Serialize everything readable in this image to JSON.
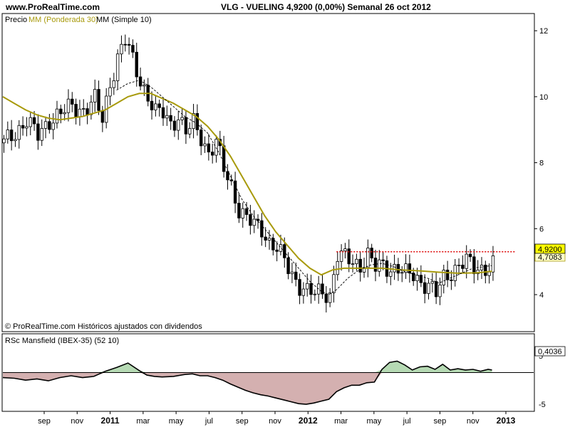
{
  "header": {
    "site": "www.ProRealTime.com",
    "title": "VLG - VUELING    4,9200 (0,00%)    Semanal  26 oct 2012"
  },
  "legend": {
    "price": "Precio",
    "ma30": "MM (Ponderada 30)",
    "ma10": "MM (Simple 10)"
  },
  "footer_note": "© ProRealTime.com  Históricos ajustados con dividendos",
  "indicator": {
    "label": "RSc Mansfield (IBEX-35) (52 10)",
    "value_label": "0,4036",
    "ticks": [
      "5",
      "-5"
    ]
  },
  "price_labels": {
    "last": "4,9200",
    "ma": "4,7083"
  },
  "chart_data": [
    {
      "type": "candlestick",
      "y_ticks": [
        12,
        10,
        8,
        6,
        4
      ],
      "ylim": [
        2.9,
        12.5
      ],
      "x_ticks": [
        "sep",
        "nov",
        "2011",
        "mar",
        "may",
        "jul",
        "sep",
        "nov",
        "2012",
        "mar",
        "may",
        "jul",
        "sep",
        "nov",
        "2013"
      ],
      "bold_ticks": [
        "2011",
        "2012",
        "2013"
      ],
      "colors": {
        "ma30": "#a89a0c",
        "ma10": "#000000",
        "resistance": "#dd0000",
        "price_box": "#ffff00",
        "ma_box": "#ffffcc"
      },
      "close_path": [
        [
          0,
          8.6
        ],
        [
          3,
          8.9
        ],
        [
          6,
          9.3
        ],
        [
          9,
          8.8
        ],
        [
          12,
          9.3
        ],
        [
          15,
          9.5
        ],
        [
          18,
          9.7
        ],
        [
          21,
          9.6
        ],
        [
          24,
          9.9
        ],
        [
          26,
          9.3
        ],
        [
          28,
          10.4
        ],
        [
          30,
          11.2
        ],
        [
          32,
          11.7
        ],
        [
          34,
          11.1
        ],
        [
          36,
          10.5
        ],
        [
          38,
          10.0
        ],
        [
          40,
          9.5
        ],
        [
          42,
          9.5
        ],
        [
          44,
          9.2
        ],
        [
          46,
          9.4
        ],
        [
          48,
          8.9
        ],
        [
          50,
          9.2
        ],
        [
          52,
          8.8
        ],
        [
          54,
          8.3
        ],
        [
          56,
          8.6
        ],
        [
          58,
          7.8
        ],
        [
          60,
          7.3
        ],
        [
          62,
          6.6
        ],
        [
          64,
          6.3
        ],
        [
          66,
          6.1
        ],
        [
          68,
          6.0
        ],
        [
          70,
          5.6
        ],
        [
          72,
          5.4
        ],
        [
          74,
          5.0
        ],
        [
          76,
          4.6
        ],
        [
          78,
          4.3
        ],
        [
          80,
          4.1
        ],
        [
          82,
          4.0
        ],
        [
          84,
          4.1
        ],
        [
          86,
          4.0
        ],
        [
          88,
          5.2
        ],
        [
          90,
          5.1
        ],
        [
          92,
          5.0
        ],
        [
          94,
          4.9
        ],
        [
          96,
          5.2
        ],
        [
          98,
          4.8
        ],
        [
          100,
          4.9
        ],
        [
          102,
          4.8
        ],
        [
          104,
          4.8
        ],
        [
          106,
          4.6
        ],
        [
          108,
          4.6
        ],
        [
          110,
          4.4
        ],
        [
          112,
          4.3
        ],
        [
          114,
          4.0
        ],
        [
          116,
          4.5
        ],
        [
          118,
          4.7
        ],
        [
          120,
          4.9
        ],
        [
          122,
          5.0
        ],
        [
          124,
          4.8
        ],
        [
          126,
          4.8
        ],
        [
          128,
          4.85
        ],
        [
          129,
          4.92
        ]
      ],
      "ma30": [
        [
          0,
          10.0
        ],
        [
          3,
          9.8
        ],
        [
          6,
          9.6
        ],
        [
          9,
          9.45
        ],
        [
          12,
          9.35
        ],
        [
          15,
          9.3
        ],
        [
          18,
          9.35
        ],
        [
          21,
          9.4
        ],
        [
          24,
          9.5
        ],
        [
          27,
          9.6
        ],
        [
          30,
          9.8
        ],
        [
          33,
          10.0
        ],
        [
          36,
          10.1
        ],
        [
          39,
          10.1
        ],
        [
          42,
          9.95
        ],
        [
          45,
          9.8
        ],
        [
          48,
          9.6
        ],
        [
          51,
          9.4
        ],
        [
          54,
          9.1
        ],
        [
          57,
          8.7
        ],
        [
          60,
          8.2
        ],
        [
          63,
          7.6
        ],
        [
          66,
          7.0
        ],
        [
          69,
          6.4
        ],
        [
          72,
          5.9
        ],
        [
          75,
          5.5
        ],
        [
          78,
          5.1
        ],
        [
          81,
          4.8
        ],
        [
          84,
          4.6
        ],
        [
          87,
          4.75
        ],
        [
          90,
          4.8
        ],
        [
          95,
          4.8
        ],
        [
          100,
          4.8
        ],
        [
          105,
          4.75
        ],
        [
          110,
          4.72
        ],
        [
          115,
          4.68
        ],
        [
          120,
          4.65
        ],
        [
          125,
          4.66
        ],
        [
          129,
          4.71
        ]
      ],
      "ma10": [
        [
          30,
          10.2
        ],
        [
          33,
          10.4
        ],
        [
          36,
          10.5
        ],
        [
          39,
          10.3
        ],
        [
          42,
          10.0
        ],
        [
          45,
          9.7
        ],
        [
          48,
          9.4
        ],
        [
          51,
          9.2
        ],
        [
          54,
          8.9
        ],
        [
          57,
          8.3
        ],
        [
          60,
          7.6
        ],
        [
          63,
          6.9
        ],
        [
          66,
          6.4
        ],
        [
          69,
          6.0
        ],
        [
          72,
          5.6
        ],
        [
          75,
          5.2
        ],
        [
          78,
          4.8
        ],
        [
          81,
          4.4
        ],
        [
          84,
          4.1
        ],
        [
          86,
          4.0
        ],
        [
          88,
          4.15
        ],
        [
          91,
          4.5
        ],
        [
          94,
          4.75
        ],
        [
          97,
          4.9
        ],
        [
          100,
          4.95
        ],
        [
          103,
          4.85
        ],
        [
          106,
          4.7
        ],
        [
          109,
          4.6
        ],
        [
          112,
          4.5
        ],
        [
          115,
          4.35
        ],
        [
          118,
          4.5
        ],
        [
          121,
          4.65
        ],
        [
          124,
          4.8
        ],
        [
          127,
          4.85
        ],
        [
          129,
          4.88
        ]
      ],
      "resistance": {
        "y": 5.3,
        "x_from": 88,
        "x_to": 135
      }
    },
    {
      "type": "area",
      "label": "RSc Mansfield (IBEX-35) (52 10)",
      "ylim": [
        -6,
        6
      ],
      "zero_line": 0,
      "colors": {
        "positive": "#b6dab4",
        "negative": "#d4b0b0",
        "line": "#000000"
      },
      "values": [
        [
          0,
          -0.8
        ],
        [
          3,
          -0.9
        ],
        [
          6,
          -1.2
        ],
        [
          9,
          -1.0
        ],
        [
          12,
          -1.3
        ],
        [
          15,
          -0.8
        ],
        [
          18,
          -0.5
        ],
        [
          21,
          -0.8
        ],
        [
          24,
          -0.6
        ],
        [
          27,
          0.2
        ],
        [
          30,
          0.8
        ],
        [
          33,
          1.5
        ],
        [
          36,
          0.3
        ],
        [
          38,
          -0.4
        ],
        [
          40,
          -0.6
        ],
        [
          42,
          -0.7
        ],
        [
          45,
          -0.6
        ],
        [
          48,
          -0.3
        ],
        [
          50,
          -0.2
        ],
        [
          52,
          -0.5
        ],
        [
          54,
          -0.5
        ],
        [
          56,
          -0.8
        ],
        [
          58,
          -1.2
        ],
        [
          60,
          -1.8
        ],
        [
          62,
          -2.3
        ],
        [
          64,
          -2.8
        ],
        [
          66,
          -3.2
        ],
        [
          68,
          -3.5
        ],
        [
          70,
          -3.7
        ],
        [
          72,
          -4.0
        ],
        [
          74,
          -4.3
        ],
        [
          76,
          -4.6
        ],
        [
          78,
          -4.9
        ],
        [
          80,
          -5.0
        ],
        [
          82,
          -4.8
        ],
        [
          84,
          -4.5
        ],
        [
          86,
          -4.2
        ],
        [
          88,
          -3.0
        ],
        [
          90,
          -2.4
        ],
        [
          92,
          -2.0
        ],
        [
          94,
          -2.0
        ],
        [
          96,
          -1.6
        ],
        [
          98,
          -1.5
        ],
        [
          100,
          0.5
        ],
        [
          102,
          1.6
        ],
        [
          104,
          1.8
        ],
        [
          106,
          1.2
        ],
        [
          108,
          0.4
        ],
        [
          110,
          0.9
        ],
        [
          112,
          1.0
        ],
        [
          114,
          0.5
        ],
        [
          116,
          1.3
        ],
        [
          118,
          0.4
        ],
        [
          120,
          0.6
        ],
        [
          122,
          0.4
        ],
        [
          124,
          0.5
        ],
        [
          126,
          0.2
        ],
        [
          128,
          0.5
        ],
        [
          129,
          0.4
        ]
      ]
    }
  ]
}
